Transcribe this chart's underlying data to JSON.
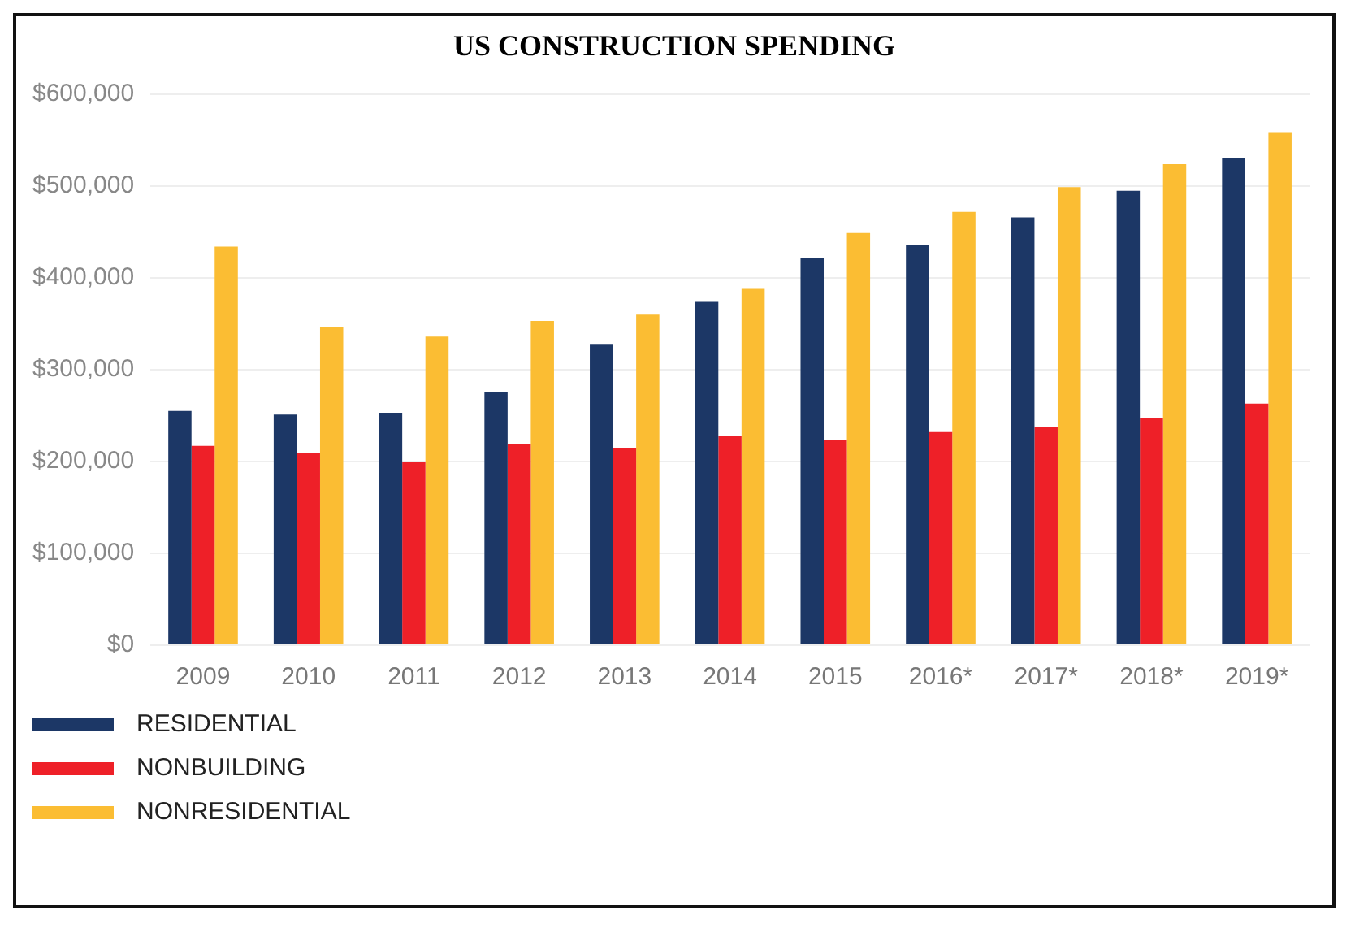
{
  "chart_data": {
    "type": "bar",
    "title": "US CONSTRUCTION SPENDING",
    "categories": [
      "2009",
      "2010",
      "2011",
      "2012",
      "2013",
      "2014",
      "2015",
      "2016*",
      "2017*",
      "2018*",
      "2019*"
    ],
    "series": [
      {
        "name": "RESIDENTIAL",
        "color": "#1c3766",
        "values": [
          255000,
          251000,
          253000,
          276000,
          328000,
          374000,
          422000,
          436000,
          466000,
          495000,
          530000
        ]
      },
      {
        "name": "NONBUILDING",
        "color": "#ee2028",
        "values": [
          217000,
          209000,
          200000,
          219000,
          215000,
          228000,
          224000,
          232000,
          238000,
          247000,
          263000
        ]
      },
      {
        "name": "NONRESIDENTIAL",
        "color": "#fbbd33",
        "values": [
          434000,
          347000,
          336000,
          353000,
          360000,
          388000,
          449000,
          472000,
          499000,
          524000,
          558000
        ]
      }
    ],
    "ylim": [
      0,
      600000
    ],
    "yticks": [
      {
        "value": 0,
        "label": "$0"
      },
      {
        "value": 100000,
        "label": "$100,000"
      },
      {
        "value": 200000,
        "label": "$200,000"
      },
      {
        "value": 300000,
        "label": "$300,000"
      },
      {
        "value": 400000,
        "label": "$400,000"
      },
      {
        "value": 500000,
        "label": "$500,000"
      },
      {
        "value": 600000,
        "label": "$600,000"
      }
    ],
    "grid": "y",
    "legend": "bottom left"
  }
}
